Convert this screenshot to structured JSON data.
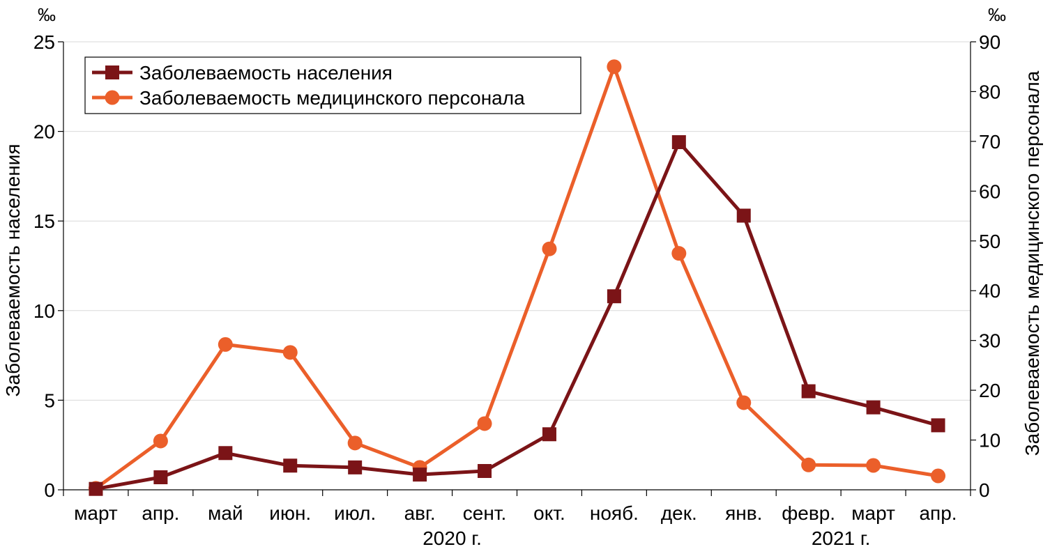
{
  "chart_data": {
    "type": "line",
    "categories": [
      "март",
      "апр.",
      "май",
      "июн.",
      "июл.",
      "авг.",
      "сент.",
      "окт.",
      "нояб.",
      "дек.",
      "янв.",
      "февр.",
      "март",
      "апр."
    ],
    "year_labels": [
      {
        "label": "2020 г.",
        "after_index": 5
      },
      {
        "label": "2021 г.",
        "after_index": 11
      }
    ],
    "left_axis": {
      "unit": "‰",
      "label": "Заболеваемость населения",
      "ylim": [
        0,
        25
      ],
      "ticks": [
        0,
        5,
        10,
        15,
        20,
        25
      ]
    },
    "right_axis": {
      "unit": "‰",
      "label": "Заболеваемость медицинского персонала",
      "ylim": [
        0,
        90
      ],
      "ticks": [
        0,
        10,
        20,
        30,
        40,
        50,
        60,
        70,
        80,
        90
      ]
    },
    "series": [
      {
        "name": "Заболеваемость населения",
        "axis": "left",
        "marker": "square",
        "color": "#7B1417",
        "values": [
          0.05,
          0.7,
          2.05,
          1.35,
          1.25,
          0.85,
          1.05,
          3.1,
          10.8,
          19.4,
          15.3,
          5.5,
          4.6,
          3.6
        ]
      },
      {
        "name": "Заболеваемость медицинского персонала",
        "axis": "right",
        "marker": "circle",
        "color": "#EB5F2A",
        "values": [
          0.3,
          9.8,
          29.2,
          27.6,
          9.4,
          4.5,
          13.3,
          48.4,
          85.0,
          47.5,
          17.5,
          5.0,
          4.9,
          2.8
        ]
      }
    ],
    "legend_position": "top-left",
    "grid": "horizontal"
  }
}
